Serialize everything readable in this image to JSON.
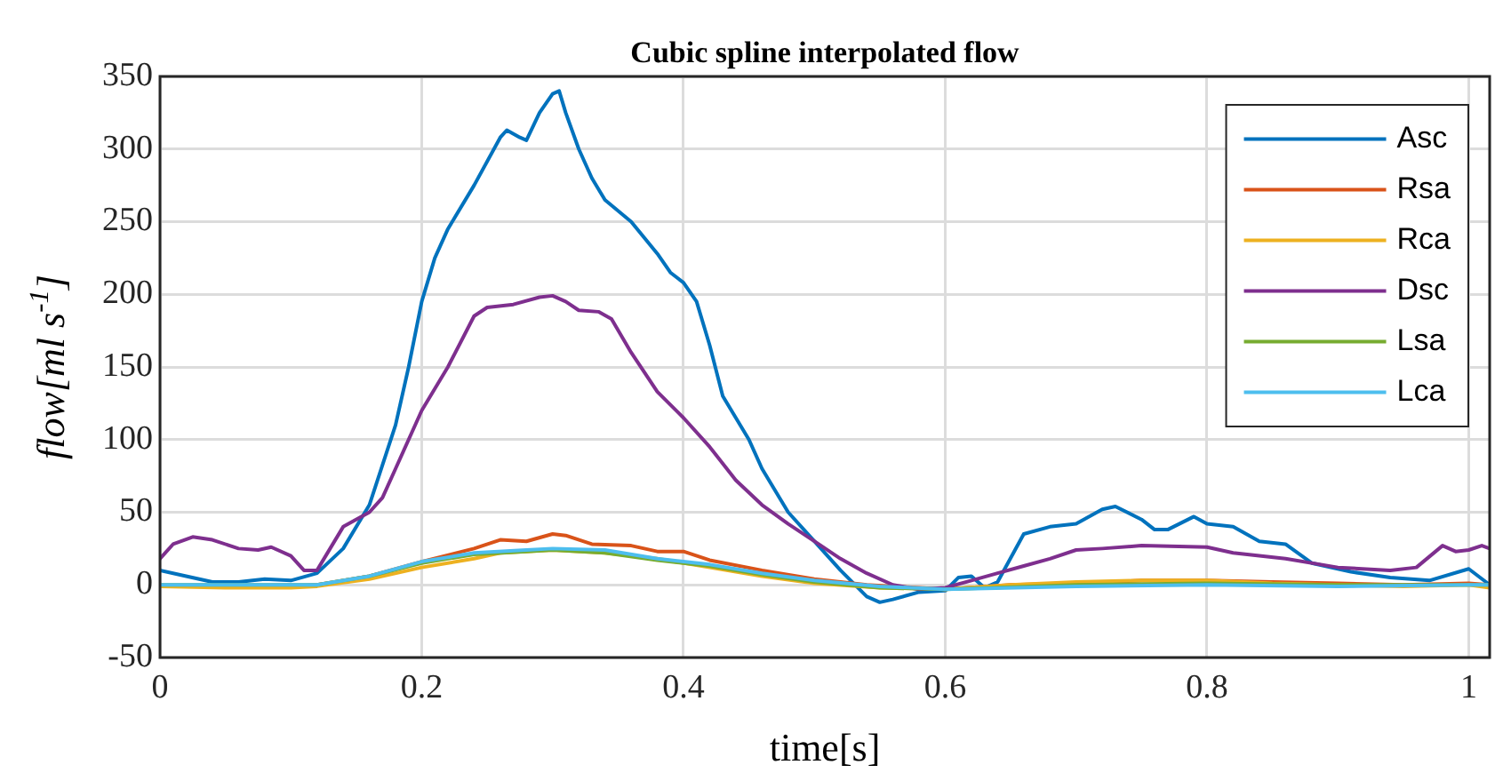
{
  "chart_data": {
    "type": "line",
    "title": "Cubic spline interpolated flow",
    "xlabel": "time[s]",
    "ylabel": "flow[ml s$^{-1}$]",
    "xlim": [
      0,
      1.016
    ],
    "xticks": [
      0,
      0.2,
      0.4,
      0.6,
      0.8,
      1
    ],
    "ylim": [
      -50,
      350
    ],
    "yticks": [
      -50,
      0,
      50,
      100,
      150,
      200,
      250,
      300,
      350
    ],
    "grid": true,
    "legend": "top right",
    "marker": "none",
    "line_style": "solid",
    "series": [
      {
        "name": "Asc",
        "color": "#0072bd",
        "x": [
          0,
          0.02,
          0.04,
          0.06,
          0.08,
          0.1,
          0.12,
          0.14,
          0.16,
          0.18,
          0.19,
          0.2,
          0.21,
          0.22,
          0.24,
          0.26,
          0.265,
          0.275,
          0.28,
          0.29,
          0.3,
          0.305,
          0.31,
          0.32,
          0.33,
          0.34,
          0.36,
          0.38,
          0.39,
          0.4,
          0.41,
          0.42,
          0.43,
          0.44,
          0.45,
          0.46,
          0.48,
          0.5,
          0.52,
          0.54,
          0.55,
          0.56,
          0.58,
          0.6,
          0.61,
          0.62,
          0.63,
          0.64,
          0.66,
          0.68,
          0.7,
          0.72,
          0.73,
          0.75,
          0.76,
          0.77,
          0.79,
          0.8,
          0.82,
          0.84,
          0.86,
          0.88,
          0.91,
          0.94,
          0.97,
          1.0,
          1.016
        ],
        "values": [
          10,
          6,
          2,
          2,
          4,
          3,
          8,
          25,
          55,
          110,
          150,
          195,
          225,
          245,
          275,
          308,
          313,
          308,
          306,
          325,
          338,
          340,
          325,
          300,
          280,
          265,
          250,
          228,
          215,
          208,
          195,
          165,
          130,
          115,
          100,
          80,
          50,
          30,
          10,
          -8,
          -12,
          -10,
          -5,
          -4,
          5,
          6,
          -2,
          2,
          35,
          40,
          42,
          52,
          54,
          45,
          38,
          38,
          47,
          42,
          40,
          30,
          28,
          15,
          9,
          5,
          3,
          11,
          0
        ]
      },
      {
        "name": "Rsa",
        "color": "#d95319",
        "x": [
          0.1,
          0.12,
          0.16,
          0.2,
          0.24,
          0.26,
          0.28,
          0.3,
          0.31,
          0.33,
          0.36,
          0.38,
          0.4,
          0.42,
          0.46,
          0.5,
          0.54,
          0.58,
          0.6,
          0.65,
          0.7,
          0.75,
          0.8,
          0.85,
          0.9,
          0.95,
          1.0,
          1.016
        ],
        "values": [
          -1,
          0,
          6,
          16,
          25,
          31,
          30,
          35,
          34,
          28,
          27,
          23,
          23,
          17,
          10,
          4,
          0,
          -2,
          -3,
          0,
          1,
          3,
          3,
          2,
          1,
          0,
          1,
          0
        ]
      },
      {
        "name": "Rca",
        "color": "#edb120",
        "x": [
          0,
          0.05,
          0.1,
          0.12,
          0.16,
          0.2,
          0.24,
          0.26,
          0.3,
          0.34,
          0.38,
          0.42,
          0.46,
          0.5,
          0.55,
          0.6,
          0.65,
          0.7,
          0.75,
          0.8,
          0.85,
          0.9,
          0.95,
          1.0,
          1.016
        ],
        "values": [
          -1,
          -2,
          -2,
          -1,
          4,
          12,
          18,
          22,
          24,
          22,
          18,
          12,
          6,
          1,
          -2,
          -3,
          0,
          2,
          3,
          3,
          1,
          0,
          -1,
          0,
          -2
        ]
      },
      {
        "name": "Dsc",
        "color": "#7e2f8e",
        "x": [
          0,
          0.01,
          0.025,
          0.04,
          0.06,
          0.075,
          0.085,
          0.1,
          0.11,
          0.12,
          0.13,
          0.14,
          0.16,
          0.17,
          0.18,
          0.2,
          0.22,
          0.24,
          0.25,
          0.27,
          0.29,
          0.3,
          0.31,
          0.32,
          0.335,
          0.345,
          0.36,
          0.38,
          0.4,
          0.42,
          0.44,
          0.46,
          0.48,
          0.5,
          0.52,
          0.54,
          0.56,
          0.58,
          0.6,
          0.62,
          0.64,
          0.66,
          0.68,
          0.7,
          0.72,
          0.75,
          0.8,
          0.82,
          0.86,
          0.9,
          0.94,
          0.96,
          0.98,
          0.99,
          1.0,
          1.01,
          1.016
        ],
        "values": [
          18,
          28,
          33,
          31,
          25,
          24,
          26,
          20,
          10,
          10,
          25,
          40,
          50,
          60,
          80,
          120,
          150,
          185,
          191,
          193,
          198,
          199,
          195,
          189,
          188,
          183,
          160,
          133,
          115,
          95,
          72,
          55,
          42,
          30,
          18,
          8,
          0,
          -3,
          -2,
          3,
          8,
          13,
          18,
          24,
          25,
          27,
          26,
          22,
          18,
          12,
          10,
          12,
          27,
          23,
          24,
          27,
          25
        ]
      },
      {
        "name": "Lsa",
        "color": "#77ac30",
        "x": [
          0,
          0.05,
          0.1,
          0.12,
          0.16,
          0.2,
          0.24,
          0.28,
          0.3,
          0.34,
          0.38,
          0.42,
          0.46,
          0.5,
          0.55,
          0.6,
          0.7,
          0.8,
          0.9,
          1.0,
          1.016
        ],
        "values": [
          0,
          0,
          0,
          0,
          6,
          15,
          21,
          23,
          24,
          22,
          17,
          13,
          7,
          2,
          -2,
          -3,
          0,
          1,
          0,
          0,
          0
        ]
      },
      {
        "name": "Lca",
        "color": "#4dbeee",
        "x": [
          0,
          0.05,
          0.1,
          0.12,
          0.16,
          0.2,
          0.24,
          0.28,
          0.3,
          0.34,
          0.38,
          0.42,
          0.46,
          0.5,
          0.55,
          0.6,
          0.7,
          0.8,
          0.9,
          1.0,
          1.016
        ],
        "values": [
          0,
          0,
          0,
          0,
          6,
          16,
          22,
          24,
          25,
          24,
          18,
          14,
          8,
          3,
          -1,
          -3,
          -1,
          0,
          -1,
          0,
          0
        ]
      }
    ]
  }
}
